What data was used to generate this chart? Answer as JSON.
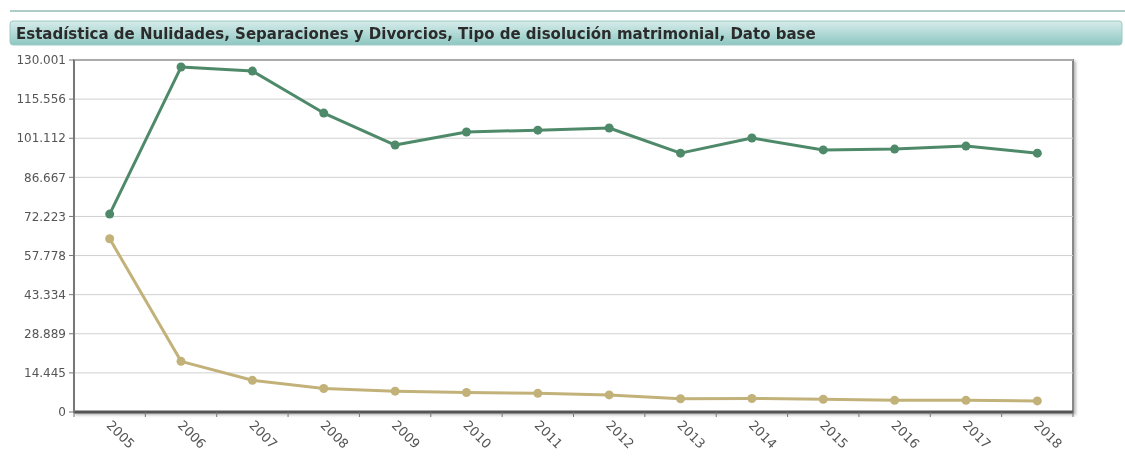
{
  "chart_data": {
    "type": "line",
    "title": "Estadística de Nulidades, Separaciones y Divorcios, Tipo de disolución matrimonial, Dato base",
    "categories": [
      "2005",
      "2006",
      "2007",
      "2008",
      "2009",
      "2010",
      "2011",
      "2012",
      "2013",
      "2014",
      "2015",
      "2016",
      "2017",
      "2018"
    ],
    "series": [
      {
        "color": "#4e8a6a",
        "values": [
          73100,
          127400,
          125900,
          110400,
          98600,
          103400,
          104100,
          104900,
          95600,
          101200,
          96800,
          97100,
          98200,
          95600
        ]
      },
      {
        "color": "#c2b27a",
        "values": [
          64000,
          18700,
          11700,
          8700,
          7700,
          7200,
          6900,
          6300,
          4900,
          5000,
          4700,
          4300,
          4300,
          4100
        ]
      }
    ],
    "ylim": [
      0,
      130001
    ],
    "yticks": [
      0,
      {
        "value": 14445,
        "label": "14.445"
      },
      {
        "value": 28889,
        "label": "28.889"
      },
      {
        "value": 43334,
        "label": "43.334"
      },
      {
        "value": 57778,
        "label": "57.778"
      },
      {
        "value": 72223,
        "label": "72.223"
      },
      {
        "value": 86667,
        "label": "86.667"
      },
      {
        "value": 101112,
        "label": "101.112"
      },
      {
        "value": 115556,
        "label": "115.556"
      },
      {
        "value": 130001,
        "label": "130.001"
      }
    ],
    "grid": "y",
    "marker": "circle",
    "line_style": "solid"
  }
}
